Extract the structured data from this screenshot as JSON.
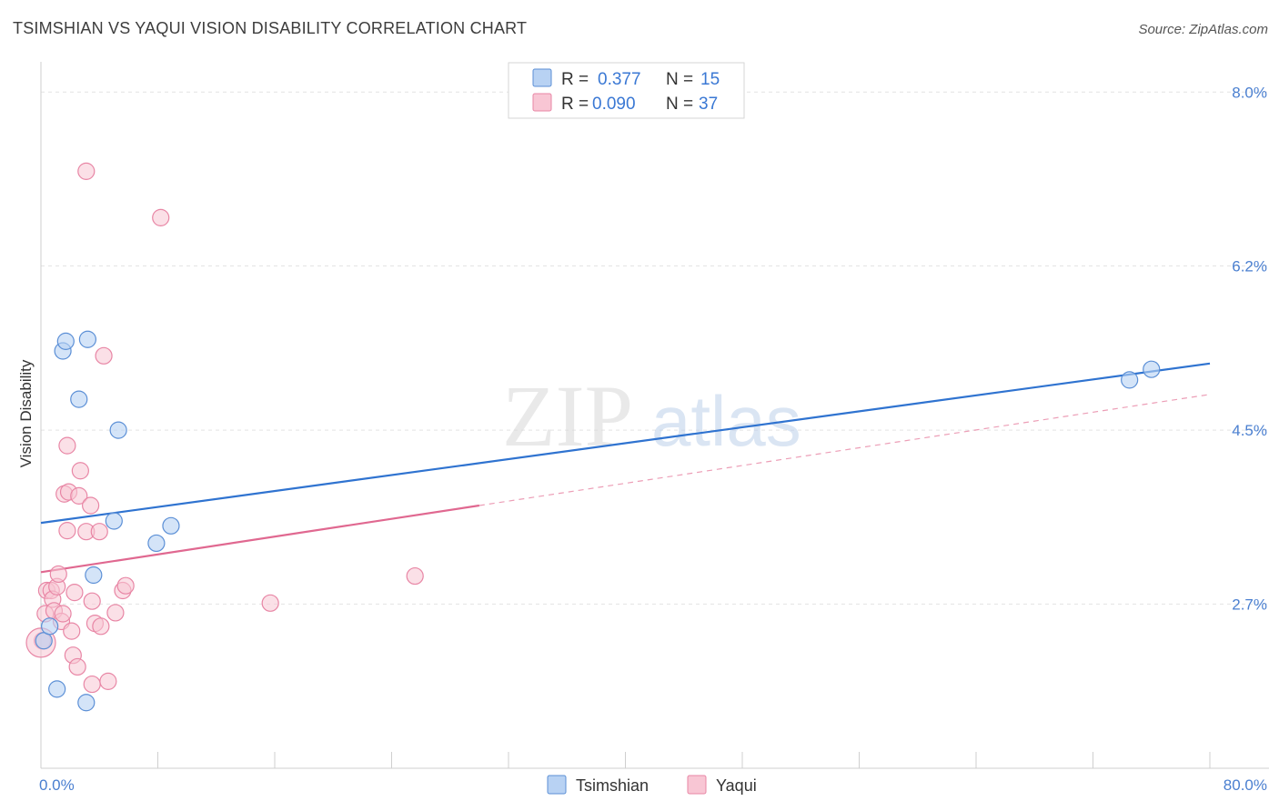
{
  "title": "TSIMSHIAN VS YAQUI VISION DISABILITY CORRELATION CHART",
  "source": "Source: ZipAtlas.com",
  "watermark": {
    "zip": "ZIP",
    "atlas": "atlas"
  },
  "colors": {
    "tsimshian_fill": "#b8d2f3",
    "tsimshian_stroke": "#5b8fd6",
    "tsimshian_line": "#2f73d0",
    "yaqui_fill": "#f8c6d4",
    "yaqui_stroke": "#e886a5",
    "yaqui_line": "#e06890",
    "tick_label": "#4a7fd0"
  },
  "legend": {
    "rows": [
      {
        "r_label": "R =",
        "r_value": "0.377",
        "n_label": "N =",
        "n_value": "15"
      },
      {
        "r_label": "R =",
        "r_value": "0.090",
        "n_label": "N =",
        "n_value": "37"
      }
    ]
  },
  "chart_data": {
    "type": "scatter",
    "title": "TSIMSHIAN VS YAQUI VISION DISABILITY CORRELATION CHART",
    "xlabel": "",
    "ylabel": "Vision Disability",
    "xlim": [
      0,
      80
    ],
    "ylim": [
      1.0,
      8.2
    ],
    "x_tick_labels": [
      "0.0%",
      "80.0%"
    ],
    "y_tick_labels": [
      "8.0%",
      "6.2%",
      "4.5%",
      "2.7%"
    ],
    "y_ticks": [
      8.0,
      6.2,
      4.5,
      2.7
    ],
    "grid": true,
    "legend_position": "top-center",
    "series": [
      {
        "name": "Tsimshian",
        "points": [
          [
            0.2,
            2.32
          ],
          [
            0.6,
            2.47
          ],
          [
            1.1,
            1.82
          ],
          [
            1.5,
            5.32
          ],
          [
            1.7,
            5.42
          ],
          [
            2.6,
            4.82
          ],
          [
            3.1,
            1.68
          ],
          [
            3.2,
            5.44
          ],
          [
            3.6,
            3.0
          ],
          [
            5.0,
            3.56
          ],
          [
            5.3,
            4.5
          ],
          [
            7.9,
            3.33
          ],
          [
            8.9,
            3.51
          ],
          [
            74.5,
            5.02
          ],
          [
            76.0,
            5.13
          ]
        ],
        "trend": {
          "x": [
            0,
            80
          ],
          "y": [
            3.54,
            5.19
          ],
          "style": "solid"
        }
      },
      {
        "name": "Yaqui",
        "points": [
          [
            0.1,
            2.32
          ],
          [
            0.3,
            2.6
          ],
          [
            0.4,
            2.84
          ],
          [
            0.7,
            2.84
          ],
          [
            0.8,
            2.75
          ],
          [
            0.9,
            2.63
          ],
          [
            1.1,
            2.88
          ],
          [
            1.2,
            3.01
          ],
          [
            1.4,
            2.52
          ],
          [
            1.5,
            2.6
          ],
          [
            1.6,
            3.84
          ],
          [
            1.8,
            3.46
          ],
          [
            1.8,
            4.34
          ],
          [
            1.9,
            3.86
          ],
          [
            2.1,
            2.42
          ],
          [
            2.2,
            2.17
          ],
          [
            2.3,
            2.82
          ],
          [
            2.5,
            2.05
          ],
          [
            2.6,
            3.82
          ],
          [
            2.7,
            4.08
          ],
          [
            3.1,
            3.45
          ],
          [
            3.1,
            7.18
          ],
          [
            3.4,
            3.72
          ],
          [
            3.5,
            1.87
          ],
          [
            3.5,
            2.73
          ],
          [
            3.7,
            2.5
          ],
          [
            4.0,
            3.45
          ],
          [
            4.1,
            2.47
          ],
          [
            4.3,
            5.27
          ],
          [
            4.6,
            1.9
          ],
          [
            5.1,
            2.61
          ],
          [
            5.6,
            2.84
          ],
          [
            5.8,
            2.89
          ],
          [
            8.2,
            6.7
          ],
          [
            15.7,
            2.71
          ],
          [
            25.6,
            2.99
          ],
          [
            0.0,
            2.3
          ]
        ],
        "trend": {
          "x": [
            0,
            30,
            80
          ],
          "y": [
            3.03,
            3.72,
            4.87
          ],
          "solid_until": 30,
          "style": "solid-then-dashed"
        }
      }
    ]
  },
  "bottom_legend": [
    {
      "label": "Tsimshian"
    },
    {
      "label": "Yaqui"
    }
  ]
}
